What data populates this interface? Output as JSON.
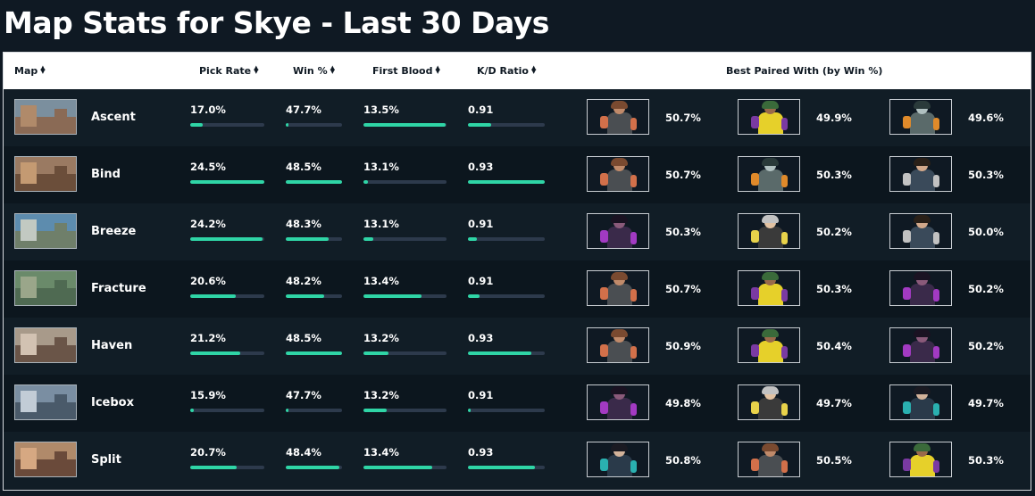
{
  "title": "Map Stats for Skye - Last 30 Days",
  "headers": {
    "map": "Map",
    "pick_rate": "Pick Rate",
    "win": "Win %",
    "first_blood": "First Blood",
    "kd": "K/D Ratio",
    "best_paired": "Best Paired With (by Win %)"
  },
  "colors": {
    "accent": "#2fd5a6",
    "track": "#2d3a4c",
    "background": "#0f1923"
  },
  "rows": [
    {
      "map": "Ascent",
      "thumb": "ascent-map-thumbnail",
      "pick_rate": "17.0%",
      "pick_fill": 0.17,
      "win": "47.7%",
      "win_fill": 0.05,
      "first_blood": "13.5%",
      "fb_fill": 0.99,
      "kd": "0.91",
      "kd_fill": 0.3,
      "pairs": [
        {
          "agent": "agent-portrait-brimstone",
          "pct": "50.7%"
        },
        {
          "agent": "agent-portrait-gekko",
          "pct": "49.9%"
        },
        {
          "agent": "agent-portrait-kayo",
          "pct": "49.6%"
        }
      ]
    },
    {
      "map": "Bind",
      "thumb": "bind-map-thumbnail",
      "pick_rate": "24.5%",
      "pick_fill": 1.0,
      "win": "48.5%",
      "win_fill": 1.0,
      "first_blood": "13.1%",
      "fb_fill": 0.05,
      "kd": "0.93",
      "kd_fill": 1.0,
      "pairs": [
        {
          "agent": "agent-portrait-brimstone",
          "pct": "50.7%"
        },
        {
          "agent": "agent-portrait-kayo",
          "pct": "50.3%"
        },
        {
          "agent": "agent-portrait-chamber",
          "pct": "50.3%"
        }
      ]
    },
    {
      "map": "Breeze",
      "thumb": "breeze-map-thumbnail",
      "pick_rate": "24.2%",
      "pick_fill": 0.98,
      "win": "48.3%",
      "win_fill": 0.76,
      "first_blood": "13.1%",
      "fb_fill": 0.12,
      "kd": "0.91",
      "kd_fill": 0.12,
      "pairs": [
        {
          "agent": "agent-portrait-reyna",
          "pct": "50.3%"
        },
        {
          "agent": "agent-portrait-killjoy",
          "pct": "50.2%"
        },
        {
          "agent": "agent-portrait-chamber",
          "pct": "50.0%"
        }
      ]
    },
    {
      "map": "Fracture",
      "thumb": "fracture-map-thumbnail",
      "pick_rate": "20.6%",
      "pick_fill": 0.62,
      "win": "48.2%",
      "win_fill": 0.68,
      "first_blood": "13.4%",
      "fb_fill": 0.7,
      "kd": "0.91",
      "kd_fill": 0.15,
      "pairs": [
        {
          "agent": "agent-portrait-brimstone",
          "pct": "50.7%"
        },
        {
          "agent": "agent-portrait-gekko",
          "pct": "50.3%"
        },
        {
          "agent": "agent-portrait-reyna",
          "pct": "50.2%"
        }
      ]
    },
    {
      "map": "Haven",
      "thumb": "haven-map-thumbnail",
      "pick_rate": "21.2%",
      "pick_fill": 0.67,
      "win": "48.5%",
      "win_fill": 1.0,
      "first_blood": "13.2%",
      "fb_fill": 0.3,
      "kd": "0.93",
      "kd_fill": 0.83,
      "pairs": [
        {
          "agent": "agent-portrait-brimstone",
          "pct": "50.9%"
        },
        {
          "agent": "agent-portrait-gekko",
          "pct": "50.4%"
        },
        {
          "agent": "agent-portrait-reyna",
          "pct": "50.2%"
        }
      ]
    },
    {
      "map": "Icebox",
      "thumb": "icebox-map-thumbnail",
      "pick_rate": "15.9%",
      "pick_fill": 0.05,
      "win": "47.7%",
      "win_fill": 0.05,
      "first_blood": "13.2%",
      "fb_fill": 0.28,
      "kd": "0.91",
      "kd_fill": 0.04,
      "pairs": [
        {
          "agent": "agent-portrait-reyna",
          "pct": "49.8%"
        },
        {
          "agent": "agent-portrait-killjoy",
          "pct": "49.7%"
        },
        {
          "agent": "agent-portrait-sage",
          "pct": "49.7%"
        }
      ]
    },
    {
      "map": "Split",
      "thumb": "split-map-thumbnail",
      "pick_rate": "20.7%",
      "pick_fill": 0.63,
      "win": "48.4%",
      "win_fill": 0.95,
      "first_blood": "13.4%",
      "fb_fill": 0.83,
      "kd": "0.93",
      "kd_fill": 0.87,
      "pairs": [
        {
          "agent": "agent-portrait-sage",
          "pct": "50.8%"
        },
        {
          "agent": "agent-portrait-brimstone",
          "pct": "50.5%"
        },
        {
          "agent": "agent-portrait-gekko",
          "pct": "50.3%"
        }
      ]
    }
  ]
}
